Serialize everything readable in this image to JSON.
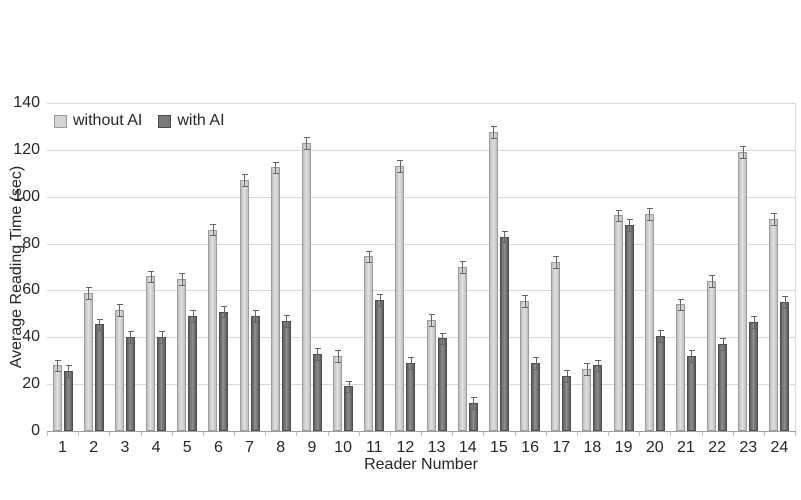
{
  "chart_data": {
    "type": "bar",
    "title": "",
    "xlabel": "Reader Number",
    "ylabel": "Average Reading Time (sec)",
    "categories": [
      "1",
      "2",
      "3",
      "4",
      "5",
      "6",
      "7",
      "8",
      "9",
      "10",
      "11",
      "12",
      "13",
      "14",
      "15",
      "16",
      "17",
      "18",
      "19",
      "20",
      "21",
      "22",
      "23",
      "24"
    ],
    "series": [
      {
        "name": "without AI",
        "fill": "#d4d4d4",
        "edge": "#9b9b9b",
        "values": [
          28,
          59,
          51.5,
          66,
          65,
          86,
          107,
          112.5,
          123,
          32,
          74.5,
          113,
          47.5,
          70,
          127.5,
          55.5,
          72,
          26.5,
          92,
          92.5,
          54,
          64,
          119,
          90.5
        ]
      },
      {
        "name": "with AI",
        "fill": "#7a7a7a",
        "edge": "#4d4d4d",
        "values": [
          25.5,
          45.5,
          40,
          40,
          49,
          51,
          49,
          47,
          33,
          19,
          56,
          29,
          39.5,
          12,
          83,
          29,
          23.5,
          28,
          88,
          40.5,
          32,
          37,
          46.5,
          55
        ]
      }
    ],
    "error_bar_plus_minus": 2.5,
    "ylim": [
      0,
      140
    ],
    "ytick_step": 20,
    "ytick_labels": [
      "0",
      "20",
      "40",
      "60",
      "80",
      "100",
      "120",
      "140"
    ],
    "grid": "horizontal",
    "legend_position": "top-left-inside",
    "colors": {
      "gridline": "#d9d9d9",
      "axis_line": "#9e9e9e",
      "text": "#262626",
      "error_bar": "#646464"
    }
  }
}
